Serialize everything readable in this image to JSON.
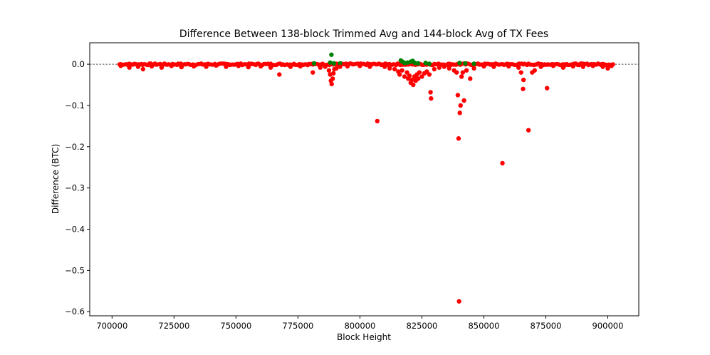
{
  "chart_data": {
    "type": "scatter",
    "title": "Difference Between 138-block Trimmed Avg and 144-block Avg of TX Fees",
    "xlabel": "Block Height",
    "ylabel": "Difference (BTC)",
    "xlim": [
      691000,
      912500
    ],
    "ylim": [
      -0.61,
      0.052
    ],
    "x_ticks": [
      700000,
      725000,
      750000,
      775000,
      800000,
      825000,
      850000,
      875000,
      900000
    ],
    "x_tick_labels": [
      "700000",
      "725000",
      "750000",
      "775000",
      "800000",
      "825000",
      "850000",
      "875000",
      "900000"
    ],
    "y_ticks": [
      0.0,
      -0.1,
      -0.2,
      -0.3,
      -0.4,
      -0.5,
      -0.6
    ],
    "y_tick_labels": [
      "0.0",
      "−0.1",
      "−0.2",
      "−0.3",
      "−0.4",
      "−0.5",
      "−0.6"
    ],
    "reference_line": {
      "y": 0,
      "style": "dotted"
    },
    "colors": {
      "positive": "#008000",
      "negative": "#ff0000"
    },
    "band": {
      "x_start": 703000,
      "x_end": 902500,
      "y": -0.001
    },
    "series": [
      {
        "name": "positive",
        "color": "#008000",
        "points": [
          [
            781500,
            0.002
          ],
          [
            788000,
            0.004
          ],
          [
            788500,
            0.023
          ],
          [
            789500,
            0.002
          ],
          [
            792000,
            0.002
          ],
          [
            816500,
            0.009
          ],
          [
            817200,
            0.006
          ],
          [
            818000,
            0.003
          ],
          [
            819200,
            0.004
          ],
          [
            820500,
            0.006
          ],
          [
            821300,
            0.008
          ],
          [
            822200,
            0.003
          ],
          [
            823500,
            0.002
          ],
          [
            826500,
            0.003
          ],
          [
            828000,
            0.001
          ],
          [
            840200,
            0.003
          ],
          [
            842500,
            0.002
          ],
          [
            846000,
            0.001
          ]
        ]
      },
      {
        "name": "negative",
        "color": "#ff0000",
        "points": [
          [
            703500,
            -0.004
          ],
          [
            707000,
            -0.008
          ],
          [
            710500,
            -0.006
          ],
          [
            712500,
            -0.012
          ],
          [
            716000,
            -0.005
          ],
          [
            720000,
            -0.008
          ],
          [
            724000,
            -0.004
          ],
          [
            728000,
            -0.007
          ],
          [
            733000,
            -0.005
          ],
          [
            738000,
            -0.006
          ],
          [
            742000,
            -0.003
          ],
          [
            746000,
            -0.006
          ],
          [
            751000,
            -0.004
          ],
          [
            755000,
            -0.007
          ],
          [
            760000,
            -0.005
          ],
          [
            764000,
            -0.008
          ],
          [
            767500,
            -0.025
          ],
          [
            772000,
            -0.006
          ],
          [
            776000,
            -0.005
          ],
          [
            781000,
            -0.02
          ],
          [
            784000,
            -0.008
          ],
          [
            786000,
            -0.006
          ],
          [
            787500,
            -0.015
          ],
          [
            788000,
            -0.025
          ],
          [
            788300,
            -0.04
          ],
          [
            788600,
            -0.048
          ],
          [
            789000,
            -0.035
          ],
          [
            789300,
            -0.022
          ],
          [
            789700,
            -0.012
          ],
          [
            790500,
            -0.01
          ],
          [
            792000,
            -0.006
          ],
          [
            795000,
            -0.005
          ],
          [
            800000,
            -0.004
          ],
          [
            804000,
            -0.006
          ],
          [
            807000,
            -0.138
          ],
          [
            810000,
            -0.006
          ],
          [
            812000,
            -0.01
          ],
          [
            814000,
            -0.012
          ],
          [
            815500,
            -0.018
          ],
          [
            816000,
            -0.025
          ],
          [
            817000,
            -0.015
          ],
          [
            818000,
            -0.03
          ],
          [
            819000,
            -0.02
          ],
          [
            819500,
            -0.035
          ],
          [
            820000,
            -0.028
          ],
          [
            820500,
            -0.045
          ],
          [
            821000,
            -0.038
          ],
          [
            821500,
            -0.05
          ],
          [
            822000,
            -0.03
          ],
          [
            822500,
            -0.04
          ],
          [
            823000,
            -0.025
          ],
          [
            823500,
            -0.035
          ],
          [
            824000,
            -0.02
          ],
          [
            825000,
            -0.03
          ],
          [
            826000,
            -0.022
          ],
          [
            827000,
            -0.018
          ],
          [
            828000,
            -0.025
          ],
          [
            828500,
            -0.068
          ],
          [
            828700,
            -0.083
          ],
          [
            830000,
            -0.012
          ],
          [
            832000,
            -0.008
          ],
          [
            834000,
            -0.006
          ],
          [
            836000,
            -0.01
          ],
          [
            838000,
            -0.015
          ],
          [
            839000,
            -0.02
          ],
          [
            839500,
            -0.075
          ],
          [
            839800,
            -0.18
          ],
          [
            840000,
            -0.575
          ],
          [
            840300,
            -0.118
          ],
          [
            840600,
            -0.1
          ],
          [
            841000,
            -0.03
          ],
          [
            841500,
            -0.02
          ],
          [
            842000,
            -0.088
          ],
          [
            843000,
            -0.015
          ],
          [
            844500,
            -0.035
          ],
          [
            846000,
            -0.01
          ],
          [
            850000,
            -0.005
          ],
          [
            854000,
            -0.006
          ],
          [
            857500,
            -0.24
          ],
          [
            860000,
            -0.005
          ],
          [
            864000,
            -0.008
          ],
          [
            865000,
            -0.02
          ],
          [
            865800,
            -0.06
          ],
          [
            866000,
            -0.038
          ],
          [
            868000,
            -0.16
          ],
          [
            869500,
            -0.02
          ],
          [
            870500,
            -0.015
          ],
          [
            873000,
            -0.006
          ],
          [
            875500,
            -0.058
          ],
          [
            878000,
            -0.004
          ],
          [
            882000,
            -0.008
          ],
          [
            886000,
            -0.005
          ],
          [
            890000,
            -0.006
          ],
          [
            894000,
            -0.004
          ],
          [
            898000,
            -0.006
          ],
          [
            900000,
            -0.01
          ],
          [
            901500,
            -0.004
          ]
        ]
      }
    ]
  }
}
